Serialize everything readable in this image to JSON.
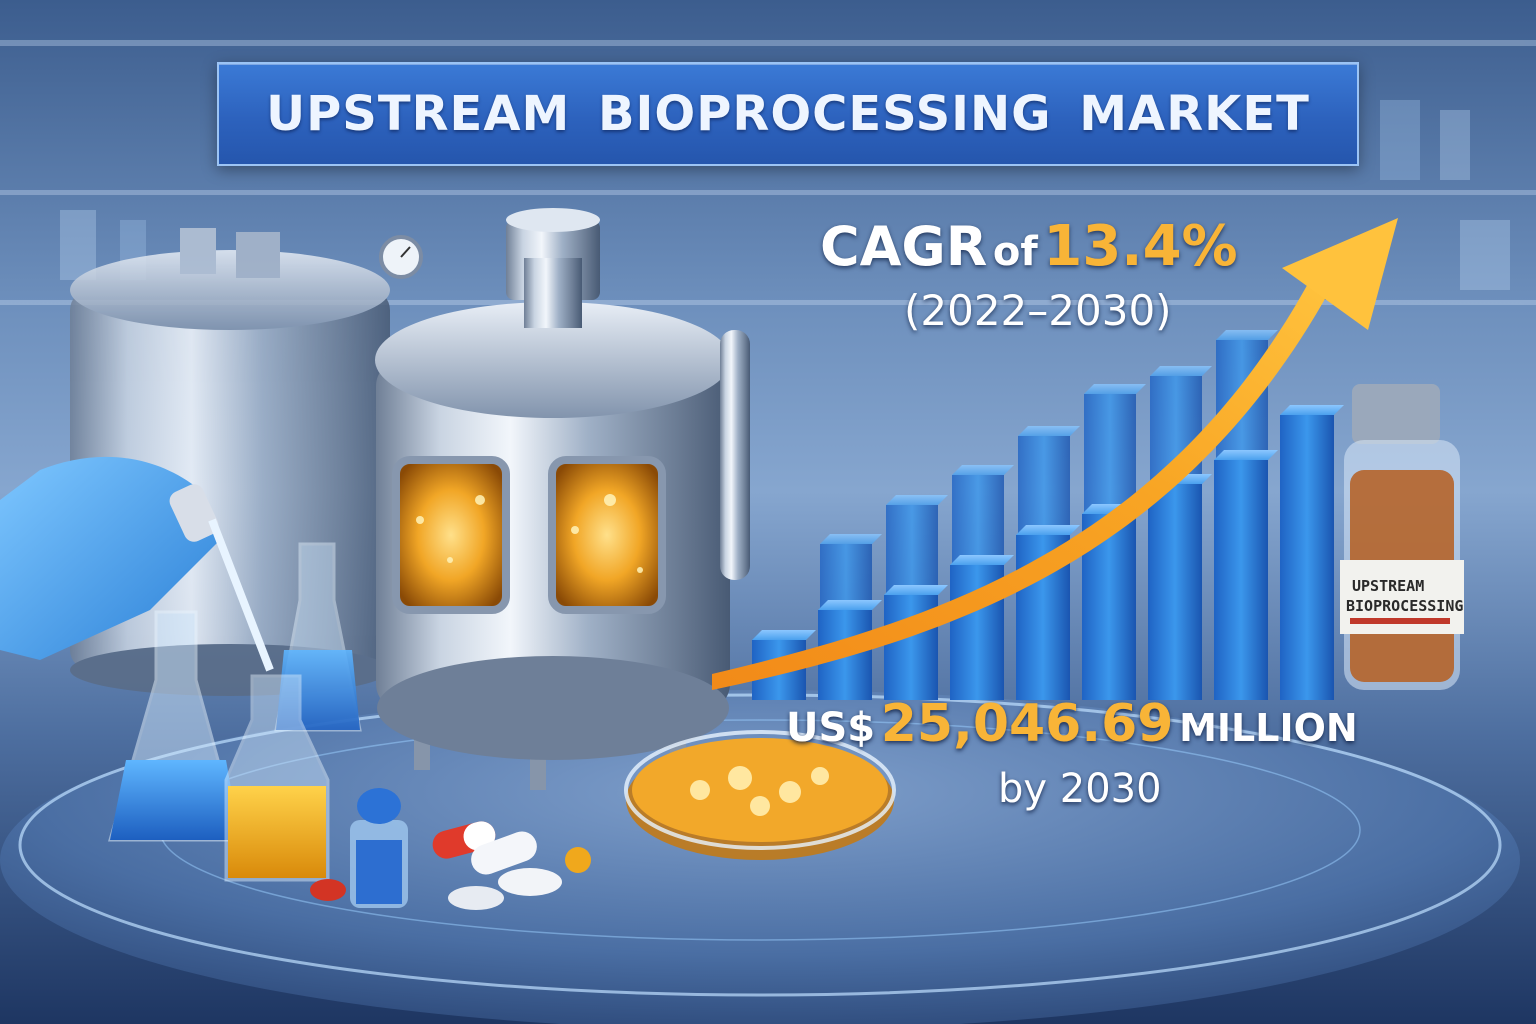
{
  "title": "UPSTREAM BIOPROCESSING MARKET",
  "growth": {
    "label": "CAGR",
    "connector": "of",
    "rate": "13.4%",
    "period": "(2022–2030)"
  },
  "forecast": {
    "currency": "US$",
    "amount": "25,046.69",
    "unit": "MILLION",
    "year_text": "by 2030"
  },
  "vial_label": {
    "line1": "UPSTREAM",
    "line2": "BIOPROCESSING"
  },
  "bar_chart": {
    "front_row": [
      0.2,
      0.3,
      0.35,
      0.45,
      0.55,
      0.62,
      0.72,
      0.8,
      0.95
    ],
    "back_row": [
      0.32,
      0.45,
      0.55,
      0.68,
      0.82,
      0.88,
      1.0
    ]
  },
  "colors": {
    "banner": "#2d62bd",
    "accent_orange": "#f8b437",
    "bar_blue": "#2f86dd"
  },
  "icons": [
    "bioreactor-icon",
    "flask-icon",
    "pipette-icon",
    "petri-dish-icon",
    "pill-icon",
    "vial-icon",
    "trend-arrow-icon"
  ]
}
